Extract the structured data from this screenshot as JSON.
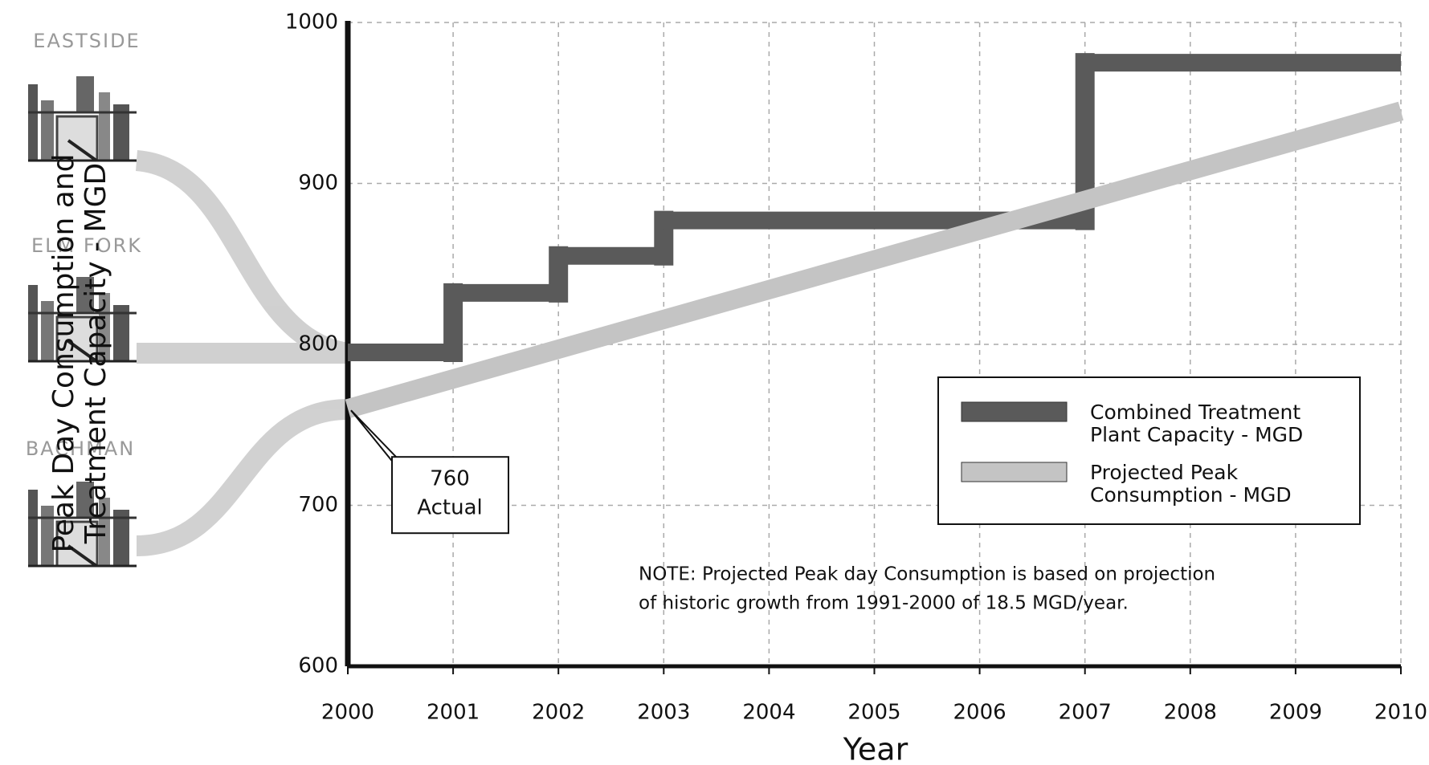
{
  "chart_data": {
    "type": "step-band",
    "y_label": "Peak Day Consumption and Treatment Capacity - MGD",
    "x_label": "Year",
    "plants": [
      "EASTSIDE",
      "ELM FORK",
      "BACHMAN"
    ],
    "xlim": [
      2000,
      2010
    ],
    "xticks": [
      2000,
      2001,
      2002,
      2003,
      2004,
      2005,
      2006,
      2007,
      2008,
      2009,
      2010
    ],
    "ylim": [
      600,
      1000
    ],
    "yticks": [
      600,
      700,
      800,
      900,
      1000
    ],
    "grid": true,
    "series": [
      {
        "name": "Combined Treatment Plant Capacity - MGD",
        "color": "#5a5a5a",
        "style": "step",
        "x": [
          2000,
          2001,
          2002,
          2003,
          2007
        ],
        "values": [
          795,
          832,
          855,
          877,
          975
        ]
      },
      {
        "name": "Projected Peak Consumption - MGD",
        "color": "#c4c4c4",
        "style": "line",
        "x": [
          2000,
          2010
        ],
        "values": [
          760,
          945
        ]
      }
    ],
    "annotation": {
      "value": 760,
      "text": "Actual"
    },
    "note": [
      "NOTE: Projected Peak day Consumption is based on projection",
      "of historic growth from 1991-2000 of 18.5 MGD/year."
    ]
  }
}
